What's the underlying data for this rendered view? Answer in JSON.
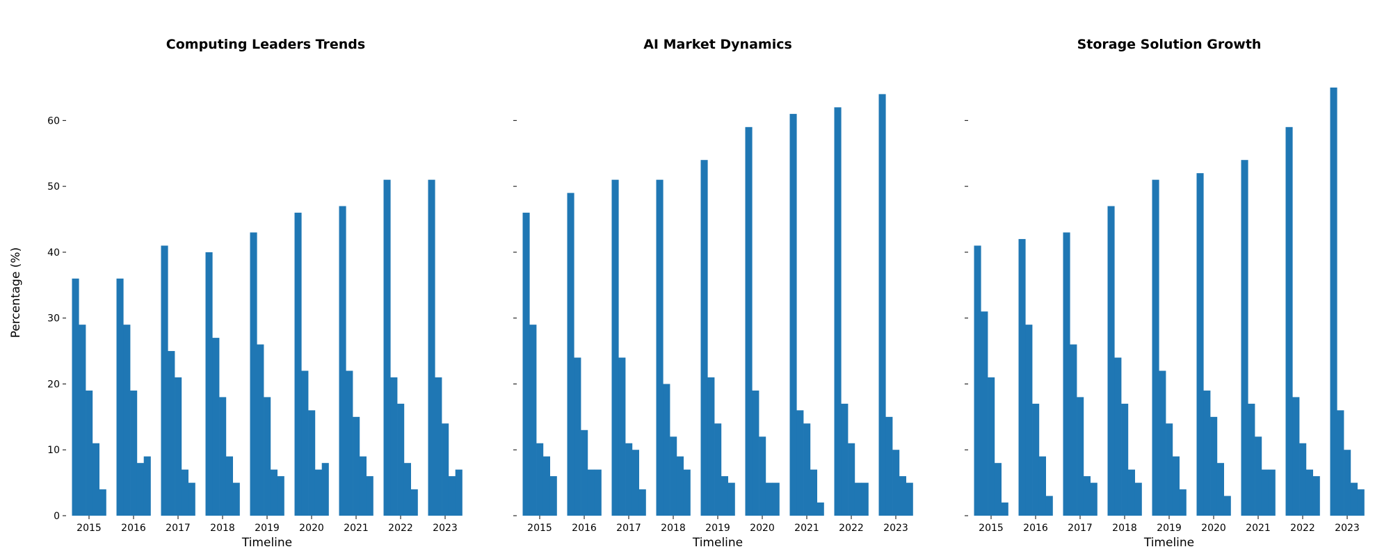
{
  "figure": {
    "ylabel": "Percentage (%)",
    "xlabel": "Timeline"
  },
  "chart_data": [
    {
      "type": "bar",
      "title": "Computing Leaders Trends",
      "xlabel": "Timeline",
      "ylabel": "Percentage (%)",
      "ylim": [
        0,
        67
      ],
      "yticks": [
        0,
        10,
        20,
        30,
        40,
        50,
        60
      ],
      "grid": false,
      "bar_color": "#1f77b4",
      "categories": [
        "2015",
        "2016",
        "2017",
        "2018",
        "2019",
        "2020",
        "2021",
        "2022",
        "2023"
      ],
      "series": [
        {
          "values": [
            36,
            36,
            41,
            40,
            43,
            46,
            47,
            51,
            51
          ]
        },
        {
          "values": [
            29,
            29,
            25,
            27,
            26,
            22,
            22,
            21,
            21
          ]
        },
        {
          "values": [
            19,
            19,
            21,
            18,
            18,
            16,
            15,
            17,
            14
          ]
        },
        {
          "values": [
            11,
            8,
            7,
            9,
            7,
            7,
            9,
            8,
            6
          ]
        },
        {
          "values": [
            4,
            9,
            5,
            5,
            6,
            8,
            6,
            4,
            7
          ]
        }
      ]
    },
    {
      "type": "bar",
      "title": "AI Market Dynamics",
      "xlabel": "Timeline",
      "ylabel": "",
      "ylim": [
        0,
        67
      ],
      "yticks": [
        0,
        10,
        20,
        30,
        40,
        50,
        60
      ],
      "grid": false,
      "bar_color": "#1f77b4",
      "categories": [
        "2015",
        "2016",
        "2017",
        "2018",
        "2019",
        "2020",
        "2021",
        "2022",
        "2023"
      ],
      "series": [
        {
          "values": [
            46,
            49,
            51,
            51,
            54,
            59,
            61,
            62,
            64
          ]
        },
        {
          "values": [
            29,
            24,
            24,
            20,
            21,
            19,
            16,
            17,
            15
          ]
        },
        {
          "values": [
            11,
            13,
            11,
            12,
            14,
            12,
            14,
            11,
            10
          ]
        },
        {
          "values": [
            9,
            7,
            10,
            9,
            6,
            5,
            7,
            5,
            6
          ]
        },
        {
          "values": [
            6,
            7,
            4,
            7,
            5,
            5,
            2,
            5,
            5
          ]
        }
      ]
    },
    {
      "type": "bar",
      "title": "Storage Solution Growth",
      "xlabel": "Timeline",
      "ylabel": "",
      "ylim": [
        0,
        67
      ],
      "yticks": [
        0,
        10,
        20,
        30,
        40,
        50,
        60
      ],
      "grid": false,
      "bar_color": "#1f77b4",
      "categories": [
        "2015",
        "2016",
        "2017",
        "2018",
        "2019",
        "2020",
        "2021",
        "2022",
        "2023"
      ],
      "series": [
        {
          "values": [
            41,
            42,
            43,
            47,
            51,
            52,
            54,
            59,
            65
          ]
        },
        {
          "values": [
            31,
            29,
            26,
            24,
            22,
            19,
            17,
            18,
            16
          ]
        },
        {
          "values": [
            21,
            17,
            18,
            17,
            14,
            15,
            12,
            11,
            10
          ]
        },
        {
          "values": [
            8,
            9,
            6,
            7,
            9,
            8,
            7,
            7,
            5
          ]
        },
        {
          "values": [
            2,
            3,
            5,
            5,
            4,
            3,
            7,
            6,
            4
          ]
        }
      ]
    }
  ]
}
